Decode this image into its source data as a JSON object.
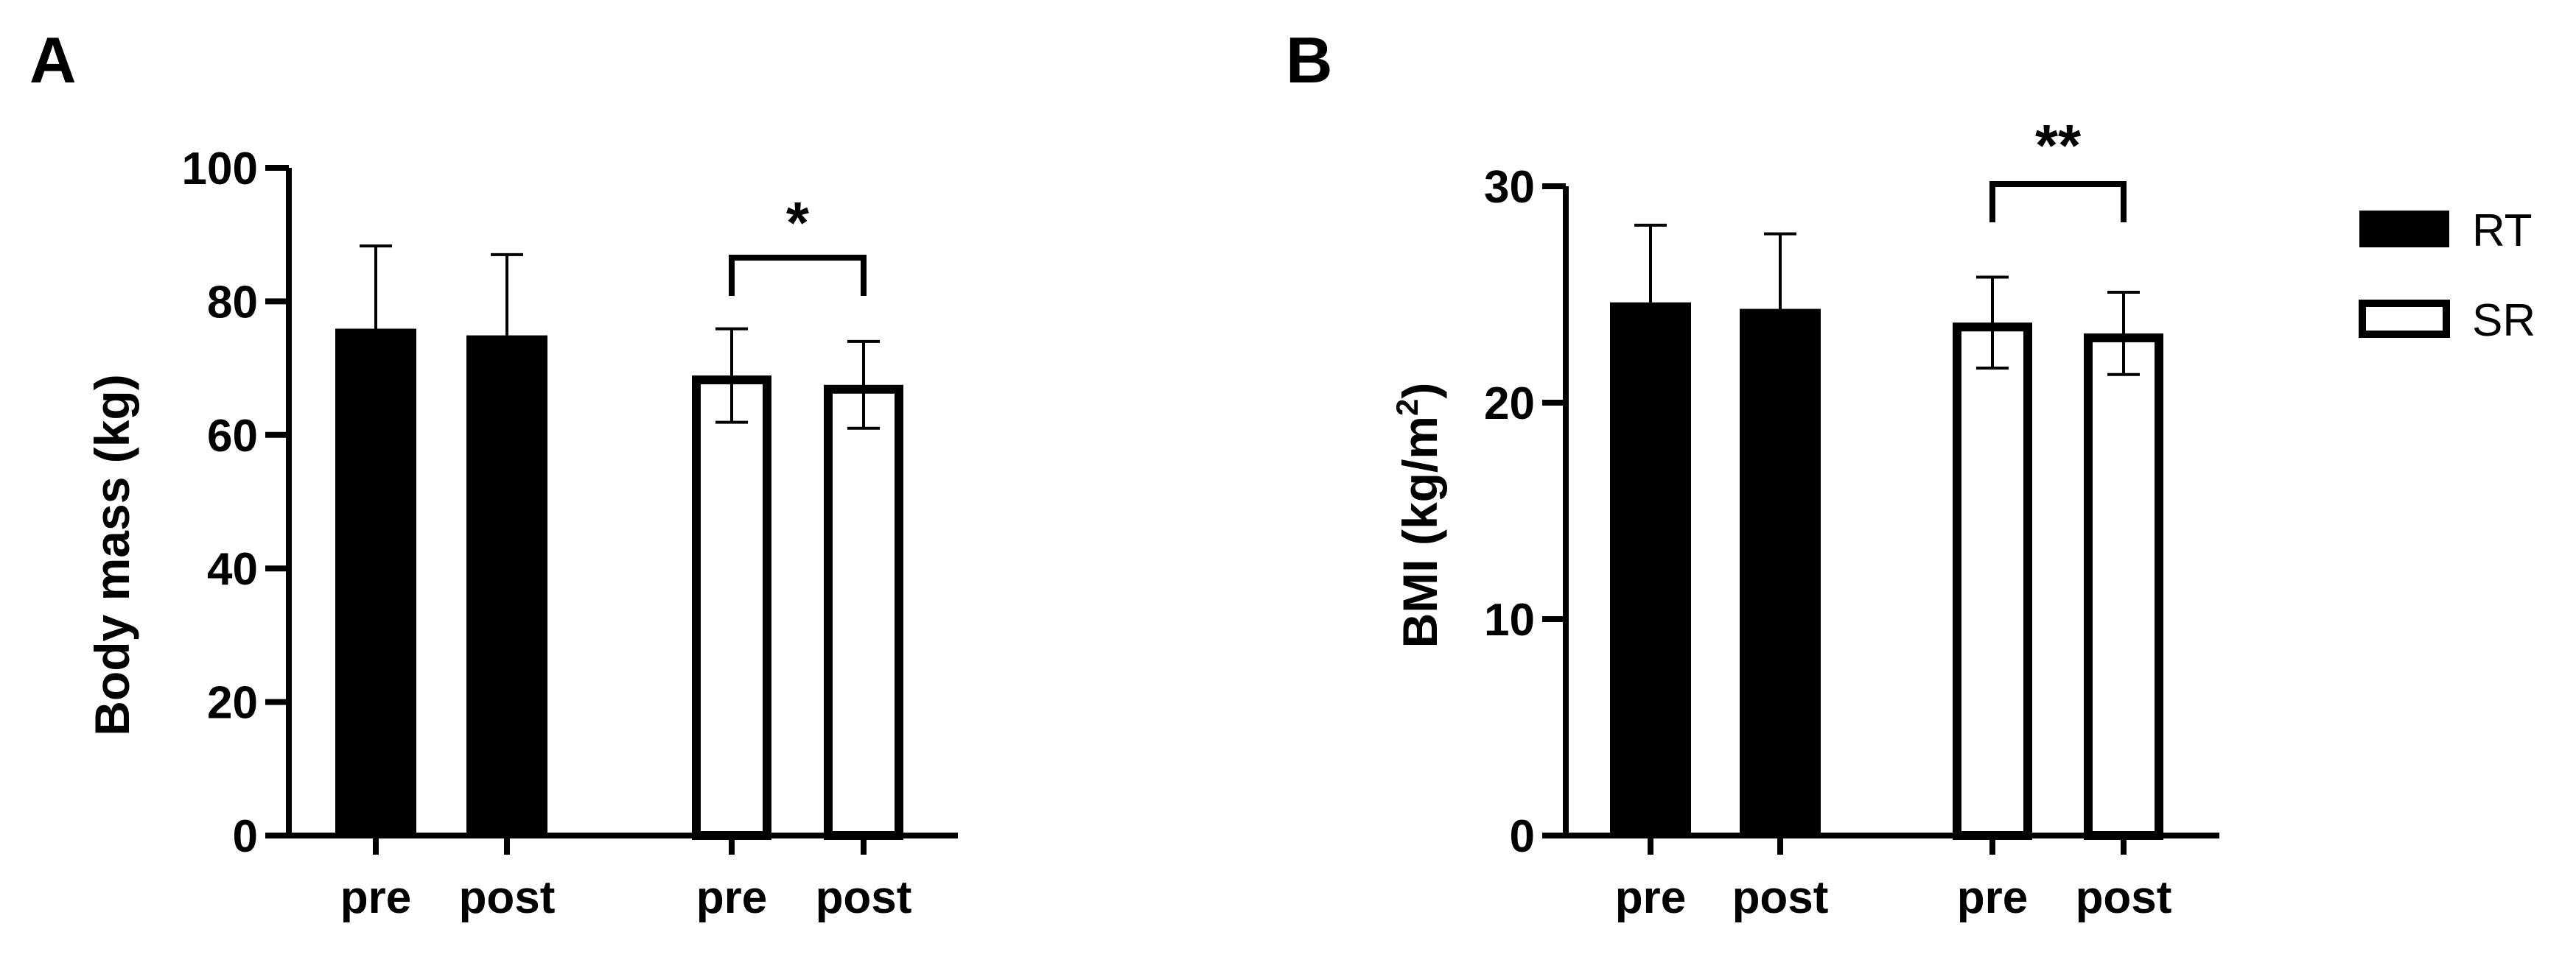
{
  "panels": [
    {
      "letter": "A"
    },
    {
      "letter": "B"
    }
  ],
  "legend": [
    {
      "label": "RT",
      "fill": "#000000"
    },
    {
      "label": "SR",
      "fill": "#ffffff"
    }
  ],
  "chart_data": [
    {
      "type": "bar",
      "panel": "A",
      "categories": [
        "pre",
        "post",
        "pre",
        "post"
      ],
      "series": [
        {
          "name": "RT",
          "fill": "#000000",
          "values": [
            75.8,
            74.8,
            null,
            null
          ],
          "error": [
            12.5,
            12.2,
            null,
            null
          ]
        },
        {
          "name": "SR",
          "fill": "#ffffff",
          "values": [
            null,
            null,
            68.9,
            67.5
          ],
          "error": [
            null,
            null,
            7.0,
            6.5
          ]
        }
      ],
      "ylabel": "Body mass (kg)",
      "ylim": [
        0,
        100
      ],
      "yticks": [
        0,
        20,
        40,
        60,
        80,
        100
      ],
      "significance": {
        "from": 2,
        "to": 3,
        "label": "*"
      }
    },
    {
      "type": "bar",
      "panel": "B",
      "categories": [
        "pre",
        "post",
        "pre",
        "post"
      ],
      "series": [
        {
          "name": "RT",
          "fill": "#000000",
          "values": [
            24.6,
            24.3,
            null,
            null
          ],
          "error": [
            3.6,
            3.5,
            null,
            null
          ]
        },
        {
          "name": "SR",
          "fill": "#ffffff",
          "values": [
            null,
            null,
            23.7,
            23.2
          ],
          "error": [
            null,
            null,
            2.1,
            1.9
          ]
        }
      ],
      "ylabel_main": "BMI (kg/m",
      "ylabel_sup": "2",
      "ylabel_end": ")",
      "ylim": [
        0,
        30
      ],
      "yticks": [
        0,
        10,
        20,
        30
      ],
      "significance": {
        "from": 2,
        "to": 3,
        "label": "**"
      }
    }
  ]
}
